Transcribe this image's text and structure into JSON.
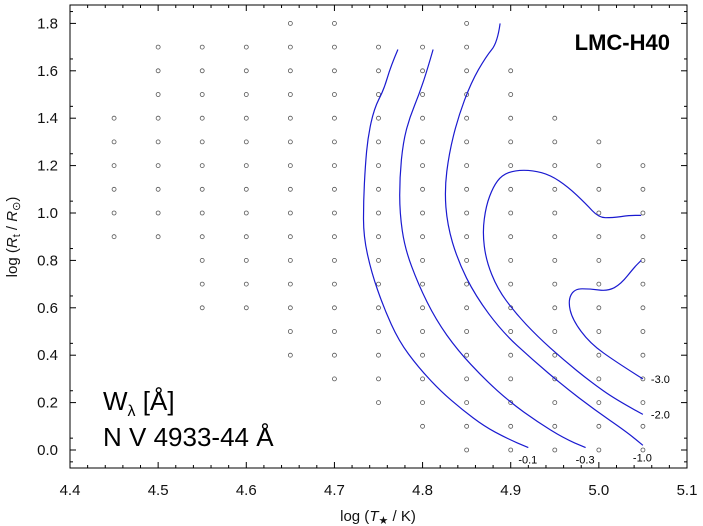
{
  "chart_data": {
    "type": "scatter",
    "title": "LMC-H40",
    "note_line1": "W",
    "note_line1_sub": "λ",
    "note_line1_rest": " [Å]",
    "note_line2": "N V 4933-44 Å",
    "xlabel": {
      "pre": "log (",
      "var": "T",
      "sub": "★",
      "post": " / K)"
    },
    "ylabel": {
      "pre": "log (",
      "var": "R",
      "sub": "t",
      "mid": " / ",
      "var2": "R",
      "sub2": "⊙",
      "post": ")"
    },
    "xlim": [
      4.4,
      5.1
    ],
    "ylim": [
      -0.11,
      1.88
    ],
    "x_ticks": [
      "4.4",
      "4.5",
      "4.6",
      "4.7",
      "4.8",
      "4.9",
      "5.0",
      "5.1"
    ],
    "y_ticks": [
      "0.0",
      "0.2",
      "0.4",
      "0.6",
      "0.8",
      "1.0",
      "1.2",
      "1.4",
      "1.6",
      "1.8"
    ],
    "grid": false,
    "model_grid": {
      "x_values": [
        4.45,
        4.5,
        4.55,
        4.6,
        4.65,
        4.7,
        4.75,
        4.8,
        4.85,
        4.9,
        4.95,
        5.0,
        5.05
      ],
      "y_ranges": [
        [
          0.9,
          1.4
        ],
        [
          0.9,
          1.7
        ],
        [
          0.6,
          1.7
        ],
        [
          0.6,
          1.7
        ],
        [
          0.4,
          1.8
        ],
        [
          0.3,
          1.8
        ],
        [
          0.2,
          1.7
        ],
        [
          0.1,
          1.7
        ],
        [
          0.0,
          1.8
        ],
        [
          0.0,
          1.6
        ],
        [
          0.0,
          1.4
        ],
        [
          0.0,
          1.3
        ],
        [
          0.0,
          1.2
        ]
      ],
      "y_step": 0.1,
      "color": "#555555"
    },
    "contours": [
      {
        "label": "-0.1",
        "color": "#1a1ad0",
        "points": [
          [
            4.772,
            1.69
          ],
          [
            4.764,
            1.62
          ],
          [
            4.756,
            1.52
          ],
          [
            4.745,
            1.44
          ],
          [
            4.738,
            1.32
          ],
          [
            4.735,
            1.2
          ],
          [
            4.733,
            1.05
          ],
          [
            4.733,
            0.9
          ],
          [
            4.742,
            0.75
          ],
          [
            4.756,
            0.6
          ],
          [
            4.773,
            0.46
          ],
          [
            4.795,
            0.35
          ],
          [
            4.82,
            0.25
          ],
          [
            4.845,
            0.17
          ],
          [
            4.87,
            0.1
          ],
          [
            4.895,
            0.05
          ],
          [
            4.92,
            0.01
          ]
        ]
      },
      {
        "label": "-0.3",
        "color": "#1a1ad0",
        "points": [
          [
            4.812,
            1.69
          ],
          [
            4.805,
            1.6
          ],
          [
            4.796,
            1.5
          ],
          [
            4.785,
            1.4
          ],
          [
            4.778,
            1.3
          ],
          [
            4.774,
            1.15
          ],
          [
            4.774,
            1.0
          ],
          [
            4.78,
            0.85
          ],
          [
            4.795,
            0.7
          ],
          [
            4.815,
            0.55
          ],
          [
            4.84,
            0.42
          ],
          [
            4.87,
            0.3
          ],
          [
            4.9,
            0.2
          ],
          [
            4.93,
            0.12
          ],
          [
            4.96,
            0.05
          ],
          [
            4.985,
            0.01
          ]
        ]
      },
      {
        "label": "-1.0",
        "color": "#1a1ad0",
        "points": [
          [
            4.888,
            1.8
          ],
          [
            4.885,
            1.72
          ],
          [
            4.872,
            1.66
          ],
          [
            4.855,
            1.55
          ],
          [
            4.84,
            1.4
          ],
          [
            4.83,
            1.25
          ],
          [
            4.825,
            1.1
          ],
          [
            4.828,
            0.95
          ],
          [
            4.84,
            0.8
          ],
          [
            4.86,
            0.65
          ],
          [
            4.89,
            0.5
          ],
          [
            4.925,
            0.38
          ],
          [
            4.96,
            0.27
          ],
          [
            4.995,
            0.17
          ],
          [
            5.03,
            0.08
          ],
          [
            5.05,
            0.02
          ]
        ]
      },
      {
        "label": "-2.0",
        "color": "#1a1ad0",
        "points": [
          [
            5.05,
            0.15
          ],
          [
            5.02,
            0.21
          ],
          [
            4.99,
            0.29
          ],
          [
            4.96,
            0.38
          ],
          [
            4.93,
            0.48
          ],
          [
            4.905,
            0.58
          ],
          [
            4.885,
            0.68
          ],
          [
            4.872,
            0.8
          ],
          [
            4.868,
            0.92
          ],
          [
            4.872,
            1.03
          ],
          [
            4.88,
            1.11
          ],
          [
            4.89,
            1.16
          ],
          [
            4.905,
            1.18
          ],
          [
            4.925,
            1.18
          ],
          [
            4.945,
            1.16
          ],
          [
            4.965,
            1.11
          ],
          [
            4.985,
            1.04
          ],
          [
            5.0,
            0.98
          ],
          [
            5.015,
            0.98
          ],
          [
            5.035,
            0.99
          ],
          [
            5.048,
            0.99
          ]
        ]
      },
      {
        "label": "-3.0",
        "color": "#1a1ad0",
        "points": [
          [
            5.05,
            0.3
          ],
          [
            5.02,
            0.37
          ],
          [
            4.99,
            0.45
          ],
          [
            4.97,
            0.55
          ],
          [
            4.965,
            0.63
          ],
          [
            4.972,
            0.68
          ],
          [
            4.99,
            0.68
          ],
          [
            5.01,
            0.67
          ],
          [
            5.025,
            0.7
          ],
          [
            5.04,
            0.77
          ],
          [
            5.048,
            0.8
          ]
        ]
      }
    ]
  }
}
